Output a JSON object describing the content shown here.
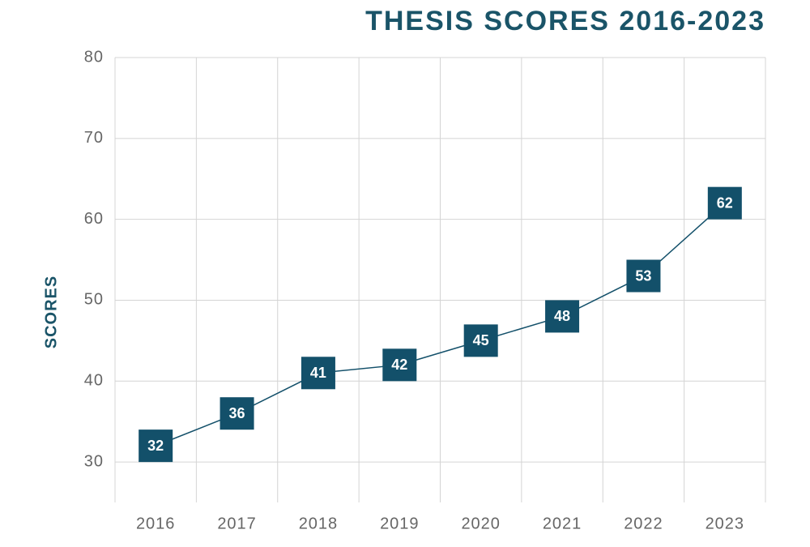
{
  "chart_data": {
    "type": "line",
    "title": "THESIS SCORES 2016-2023",
    "y_label": "SCORES",
    "categories": [
      "2016",
      "2017",
      "2018",
      "2019",
      "2020",
      "2021",
      "2022",
      "2023"
    ],
    "values": [
      32,
      36,
      41,
      42,
      45,
      48,
      53,
      62
    ],
    "color": "#13506a",
    "ylim": [
      25,
      80
    ],
    "yticks": [
      30,
      40,
      50,
      60,
      70,
      80
    ],
    "grid": true
  }
}
